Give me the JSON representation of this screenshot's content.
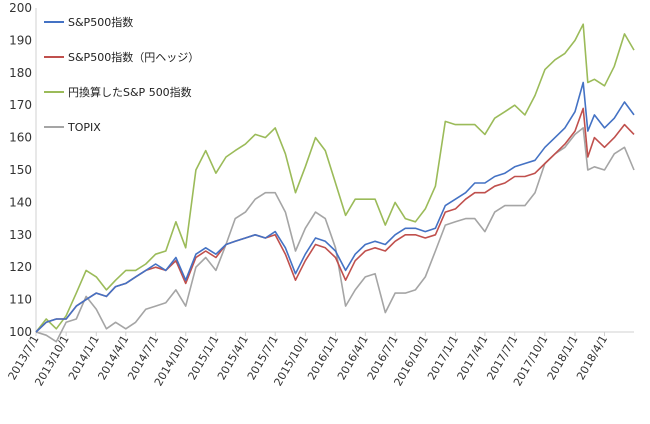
{
  "chart_data": {
    "type": "line",
    "title": "",
    "xlabel": "",
    "ylabel": "",
    "ylim": [
      100,
      200
    ],
    "y_ticks": [
      100,
      110,
      120,
      130,
      140,
      150,
      160,
      170,
      180,
      190,
      200
    ],
    "x_tick_labels": [
      "2013/7/1",
      "2013/10/1",
      "2014/1/1",
      "2014/4/1",
      "2014/7/1",
      "2014/10/1",
      "2015/1/1",
      "2015/4/1",
      "2015/7/1",
      "2015/10/1",
      "2016/1/1",
      "2016/4/1",
      "2016/7/1",
      "2016/10/1",
      "2017/1/1",
      "2017/4/1",
      "2017/7/1",
      "2017/10/1",
      "2018/1/1",
      "2018/4/1"
    ],
    "x_range": [
      "2013/7/1",
      "2018/6/30"
    ],
    "grid": false,
    "legend_position": "top-left",
    "series": [
      {
        "name": "S&P500指数",
        "color": "#4472c4",
        "points": [
          [
            "2013/7/1",
            100
          ],
          [
            "2013/8/1",
            103
          ],
          [
            "2013/9/1",
            104
          ],
          [
            "2013/10/1",
            104
          ],
          [
            "2013/11/1",
            108
          ],
          [
            "2013/12/1",
            110
          ],
          [
            "2014/1/1",
            112
          ],
          [
            "2014/2/1",
            111
          ],
          [
            "2014/3/1",
            114
          ],
          [
            "2014/4/1",
            115
          ],
          [
            "2014/5/1",
            117
          ],
          [
            "2014/6/1",
            119
          ],
          [
            "2014/7/1",
            121
          ],
          [
            "2014/8/1",
            119
          ],
          [
            "2014/9/1",
            123
          ],
          [
            "2014/10/1",
            116
          ],
          [
            "2014/11/1",
            124
          ],
          [
            "2014/12/1",
            126
          ],
          [
            "2015/1/1",
            124
          ],
          [
            "2015/2/1",
            127
          ],
          [
            "2015/3/1",
            128
          ],
          [
            "2015/4/1",
            129
          ],
          [
            "2015/5/1",
            130
          ],
          [
            "2015/6/1",
            129
          ],
          [
            "2015/7/1",
            131
          ],
          [
            "2015/8/1",
            126
          ],
          [
            "2015/9/1",
            118
          ],
          [
            "2015/10/1",
            124
          ],
          [
            "2015/11/1",
            129
          ],
          [
            "2015/12/1",
            128
          ],
          [
            "2016/1/1",
            125
          ],
          [
            "2016/2/1",
            119
          ],
          [
            "2016/3/1",
            124
          ],
          [
            "2016/4/1",
            127
          ],
          [
            "2016/5/1",
            128
          ],
          [
            "2016/6/1",
            127
          ],
          [
            "2016/7/1",
            130
          ],
          [
            "2016/8/1",
            132
          ],
          [
            "2016/9/1",
            132
          ],
          [
            "2016/10/1",
            131
          ],
          [
            "2016/11/1",
            132
          ],
          [
            "2016/12/1",
            139
          ],
          [
            "2017/1/1",
            141
          ],
          [
            "2017/2/1",
            143
          ],
          [
            "2017/3/1",
            146
          ],
          [
            "2017/4/1",
            146
          ],
          [
            "2017/5/1",
            148
          ],
          [
            "2017/6/1",
            149
          ],
          [
            "2017/7/1",
            151
          ],
          [
            "2017/8/1",
            152
          ],
          [
            "2017/9/1",
            153
          ],
          [
            "2017/10/1",
            157
          ],
          [
            "2017/11/1",
            160
          ],
          [
            "2017/12/1",
            163
          ],
          [
            "2018/1/1",
            168
          ],
          [
            "2018/1/26",
            177
          ],
          [
            "2018/2/9",
            162
          ],
          [
            "2018/3/1",
            167
          ],
          [
            "2018/4/1",
            163
          ],
          [
            "2018/5/1",
            166
          ],
          [
            "2018/6/1",
            171
          ],
          [
            "2018/6/30",
            167
          ]
        ]
      },
      {
        "name": "S&P500指数（円ヘッジ）",
        "color": "#c0504d",
        "points": [
          [
            "2013/7/1",
            100
          ],
          [
            "2013/8/1",
            103
          ],
          [
            "2013/9/1",
            104
          ],
          [
            "2013/10/1",
            104
          ],
          [
            "2013/11/1",
            108
          ],
          [
            "2013/12/1",
            110
          ],
          [
            "2014/1/1",
            112
          ],
          [
            "2014/2/1",
            111
          ],
          [
            "2014/3/1",
            114
          ],
          [
            "2014/4/1",
            115
          ],
          [
            "2014/5/1",
            117
          ],
          [
            "2014/6/1",
            119
          ],
          [
            "2014/7/1",
            120
          ],
          [
            "2014/8/1",
            119
          ],
          [
            "2014/9/1",
            122
          ],
          [
            "2014/10/1",
            115
          ],
          [
            "2014/11/1",
            123
          ],
          [
            "2014/12/1",
            125
          ],
          [
            "2015/1/1",
            123
          ],
          [
            "2015/2/1",
            127
          ],
          [
            "2015/3/1",
            128
          ],
          [
            "2015/4/1",
            129
          ],
          [
            "2015/5/1",
            130
          ],
          [
            "2015/6/1",
            129
          ],
          [
            "2015/7/1",
            130
          ],
          [
            "2015/8/1",
            124
          ],
          [
            "2015/9/1",
            116
          ],
          [
            "2015/10/1",
            122
          ],
          [
            "2015/11/1",
            127
          ],
          [
            "2015/12/1",
            126
          ],
          [
            "2016/1/1",
            123
          ],
          [
            "2016/2/1",
            116
          ],
          [
            "2016/3/1",
            122
          ],
          [
            "2016/4/1",
            125
          ],
          [
            "2016/5/1",
            126
          ],
          [
            "2016/6/1",
            125
          ],
          [
            "2016/7/1",
            128
          ],
          [
            "2016/8/1",
            130
          ],
          [
            "2016/9/1",
            130
          ],
          [
            "2016/10/1",
            129
          ],
          [
            "2016/11/1",
            130
          ],
          [
            "2016/12/1",
            137
          ],
          [
            "2017/1/1",
            138
          ],
          [
            "2017/2/1",
            141
          ],
          [
            "2017/3/1",
            143
          ],
          [
            "2017/4/1",
            143
          ],
          [
            "2017/5/1",
            145
          ],
          [
            "2017/6/1",
            146
          ],
          [
            "2017/7/1",
            148
          ],
          [
            "2017/8/1",
            148
          ],
          [
            "2017/9/1",
            149
          ],
          [
            "2017/10/1",
            152
          ],
          [
            "2017/11/1",
            155
          ],
          [
            "2017/12/1",
            158
          ],
          [
            "2018/1/1",
            162
          ],
          [
            "2018/1/26",
            169
          ],
          [
            "2018/2/9",
            154
          ],
          [
            "2018/3/1",
            160
          ],
          [
            "2018/4/1",
            157
          ],
          [
            "2018/5/1",
            160
          ],
          [
            "2018/6/1",
            164
          ],
          [
            "2018/6/30",
            161
          ]
        ]
      },
      {
        "name": "円換算したS&P 500指数",
        "color": "#9bbb59",
        "points": [
          [
            "2013/7/1",
            100
          ],
          [
            "2013/8/1",
            104
          ],
          [
            "2013/9/1",
            101
          ],
          [
            "2013/10/1",
            105
          ],
          [
            "2013/11/1",
            112
          ],
          [
            "2013/12/1",
            119
          ],
          [
            "2014/1/1",
            117
          ],
          [
            "2014/2/1",
            113
          ],
          [
            "2014/3/1",
            116
          ],
          [
            "2014/4/1",
            119
          ],
          [
            "2014/5/1",
            119
          ],
          [
            "2014/6/1",
            121
          ],
          [
            "2014/7/1",
            124
          ],
          [
            "2014/8/1",
            125
          ],
          [
            "2014/9/1",
            134
          ],
          [
            "2014/10/1",
            126
          ],
          [
            "2014/11/1",
            150
          ],
          [
            "2014/12/1",
            156
          ],
          [
            "2015/1/1",
            149
          ],
          [
            "2015/2/1",
            154
          ],
          [
            "2015/3/1",
            156
          ],
          [
            "2015/4/1",
            158
          ],
          [
            "2015/5/1",
            161
          ],
          [
            "2015/6/1",
            160
          ],
          [
            "2015/7/1",
            163
          ],
          [
            "2015/8/1",
            155
          ],
          [
            "2015/9/1",
            143
          ],
          [
            "2015/10/1",
            151
          ],
          [
            "2015/11/1",
            160
          ],
          [
            "2015/12/1",
            156
          ],
          [
            "2016/1/1",
            146
          ],
          [
            "2016/2/1",
            136
          ],
          [
            "2016/3/1",
            141
          ],
          [
            "2016/4/1",
            141
          ],
          [
            "2016/5/1",
            141
          ],
          [
            "2016/6/1",
            133
          ],
          [
            "2016/7/1",
            140
          ],
          [
            "2016/8/1",
            135
          ],
          [
            "2016/9/1",
            134
          ],
          [
            "2016/10/1",
            138
          ],
          [
            "2016/11/1",
            145
          ],
          [
            "2016/12/1",
            165
          ],
          [
            "2017/1/1",
            164
          ],
          [
            "2017/2/1",
            164
          ],
          [
            "2017/3/1",
            164
          ],
          [
            "2017/4/1",
            161
          ],
          [
            "2017/5/1",
            166
          ],
          [
            "2017/6/1",
            168
          ],
          [
            "2017/7/1",
            170
          ],
          [
            "2017/8/1",
            167
          ],
          [
            "2017/9/1",
            173
          ],
          [
            "2017/10/1",
            181
          ],
          [
            "2017/11/1",
            184
          ],
          [
            "2017/12/1",
            186
          ],
          [
            "2018/1/1",
            190
          ],
          [
            "2018/1/26",
            195
          ],
          [
            "2018/2/9",
            177
          ],
          [
            "2018/3/1",
            178
          ],
          [
            "2018/4/1",
            176
          ],
          [
            "2018/5/1",
            182
          ],
          [
            "2018/6/1",
            192
          ],
          [
            "2018/6/30",
            187
          ]
        ]
      },
      {
        "name": "TOPIX",
        "color": "#a5a5a5",
        "points": [
          [
            "2013/7/1",
            100
          ],
          [
            "2013/8/1",
            99
          ],
          [
            "2013/9/1",
            97
          ],
          [
            "2013/10/1",
            103
          ],
          [
            "2013/11/1",
            104
          ],
          [
            "2013/12/1",
            111
          ],
          [
            "2014/1/1",
            107
          ],
          [
            "2014/2/1",
            101
          ],
          [
            "2014/3/1",
            103
          ],
          [
            "2014/4/1",
            101
          ],
          [
            "2014/5/1",
            103
          ],
          [
            "2014/6/1",
            107
          ],
          [
            "2014/7/1",
            108
          ],
          [
            "2014/8/1",
            109
          ],
          [
            "2014/9/1",
            113
          ],
          [
            "2014/10/1",
            108
          ],
          [
            "2014/11/1",
            120
          ],
          [
            "2014/12/1",
            123
          ],
          [
            "2015/1/1",
            119
          ],
          [
            "2015/2/1",
            127
          ],
          [
            "2015/3/1",
            135
          ],
          [
            "2015/4/1",
            137
          ],
          [
            "2015/5/1",
            141
          ],
          [
            "2015/6/1",
            143
          ],
          [
            "2015/7/1",
            143
          ],
          [
            "2015/8/1",
            137
          ],
          [
            "2015/9/1",
            125
          ],
          [
            "2015/10/1",
            132
          ],
          [
            "2015/11/1",
            137
          ],
          [
            "2015/12/1",
            135
          ],
          [
            "2016/1/1",
            126
          ],
          [
            "2016/2/1",
            108
          ],
          [
            "2016/3/1",
            113
          ],
          [
            "2016/4/1",
            117
          ],
          [
            "2016/5/1",
            118
          ],
          [
            "2016/6/1",
            106
          ],
          [
            "2016/7/1",
            112
          ],
          [
            "2016/8/1",
            112
          ],
          [
            "2016/9/1",
            113
          ],
          [
            "2016/10/1",
            117
          ],
          [
            "2016/11/1",
            125
          ],
          [
            "2016/12/1",
            133
          ],
          [
            "2017/1/1",
            134
          ],
          [
            "2017/2/1",
            135
          ],
          [
            "2017/3/1",
            135
          ],
          [
            "2017/4/1",
            131
          ],
          [
            "2017/5/1",
            137
          ],
          [
            "2017/6/1",
            139
          ],
          [
            "2017/7/1",
            139
          ],
          [
            "2017/8/1",
            139
          ],
          [
            "2017/9/1",
            143
          ],
          [
            "2017/10/1",
            152
          ],
          [
            "2017/11/1",
            155
          ],
          [
            "2017/12/1",
            157
          ],
          [
            "2018/1/1",
            161
          ],
          [
            "2018/1/26",
            163
          ],
          [
            "2018/2/9",
            150
          ],
          [
            "2018/3/1",
            151
          ],
          [
            "2018/4/1",
            150
          ],
          [
            "2018/5/1",
            155
          ],
          [
            "2018/6/1",
            157
          ],
          [
            "2018/6/30",
            150
          ]
        ]
      }
    ]
  }
}
